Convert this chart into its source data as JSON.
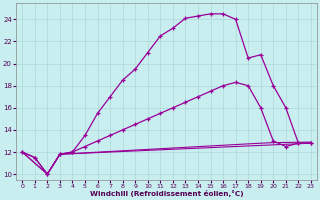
{
  "title": "",
  "xlabel": "Windchill (Refroidissement éolien,°C)",
  "bg_color": "#c8eef0",
  "grid_color": "#b0d8d8",
  "line_color": "#990099",
  "xlim": [
    -0.5,
    23.5
  ],
  "ylim": [
    9.5,
    25.5
  ],
  "xticks": [
    0,
    1,
    2,
    3,
    4,
    5,
    6,
    7,
    8,
    9,
    10,
    11,
    12,
    13,
    14,
    15,
    16,
    17,
    18,
    19,
    20,
    21,
    22,
    23
  ],
  "yticks": [
    10,
    12,
    14,
    16,
    18,
    20,
    22,
    24
  ],
  "line1_x": [
    0,
    1,
    2,
    3,
    4,
    5,
    6,
    7,
    8,
    9,
    10,
    11,
    12,
    13,
    14,
    15,
    16,
    17,
    18,
    19,
    20,
    21,
    22,
    23
  ],
  "line1_y": [
    12.0,
    11.5,
    10.0,
    11.8,
    12.0,
    13.5,
    15.5,
    17.0,
    18.5,
    19.5,
    21.0,
    22.5,
    23.2,
    24.1,
    24.3,
    24.5,
    24.5,
    24.0,
    20.5,
    20.8,
    18.0,
    16.0,
    12.8,
    12.8
  ],
  "line2_x": [
    0,
    1,
    2,
    3,
    4,
    5,
    6,
    7,
    8,
    9,
    10,
    11,
    12,
    13,
    14,
    15,
    16,
    17,
    18,
    19,
    20,
    21,
    22,
    23
  ],
  "line2_y": [
    12.0,
    11.5,
    10.0,
    11.8,
    12.0,
    12.5,
    13.0,
    13.5,
    14.0,
    14.5,
    15.0,
    15.5,
    16.0,
    16.5,
    17.0,
    17.5,
    18.0,
    18.3,
    18.0,
    16.0,
    13.0,
    12.5,
    12.8,
    12.8
  ],
  "line3_x": [
    0,
    2,
    3,
    23
  ],
  "line3_y": [
    12.0,
    10.0,
    11.8,
    12.8
  ],
  "line4_x": [
    0,
    2,
    3,
    19,
    20,
    23
  ],
  "line4_y": [
    12.0,
    10.0,
    11.8,
    12.8,
    12.85,
    12.9
  ]
}
